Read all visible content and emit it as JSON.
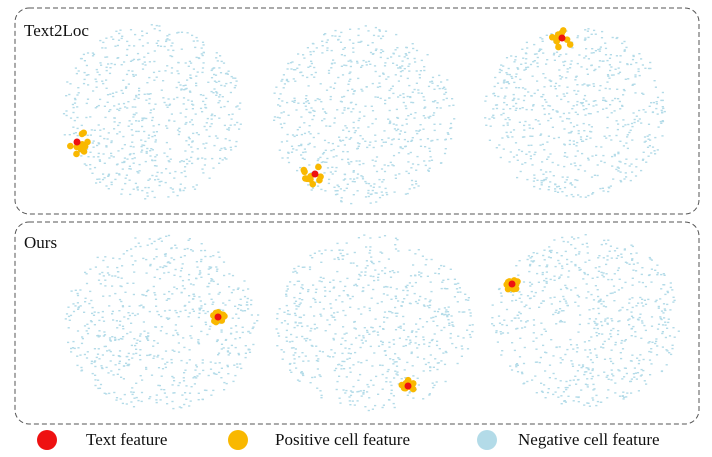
{
  "panels": [
    {
      "label": "Text2Loc"
    },
    {
      "label": "Ours"
    }
  ],
  "legend": [
    {
      "label": "Text feature",
      "color": "#ee1111"
    },
    {
      "label": "Positive cell feature",
      "color": "#f9b800"
    },
    {
      "label": "Negative cell feature",
      "color": "#b3dbe8"
    }
  ]
}
